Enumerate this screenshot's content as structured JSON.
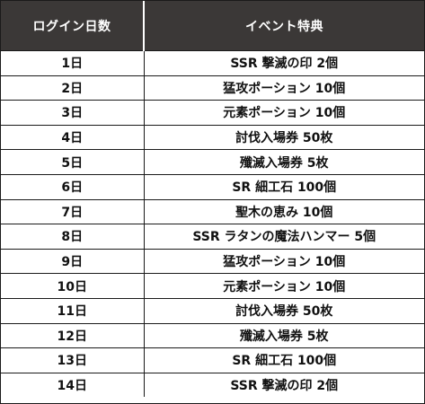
{
  "table": {
    "headers": {
      "day": "ログイン日数",
      "event": "イベント特典"
    },
    "rows": [
      {
        "day": "1日",
        "reward": "SSR 撃滅の印 2個"
      },
      {
        "day": "2日",
        "reward": "猛攻ポーション 10個"
      },
      {
        "day": "3日",
        "reward": "元素ポーション 10個"
      },
      {
        "day": "4日",
        "reward": "討伐入場券 50枚"
      },
      {
        "day": "5日",
        "reward": "殲滅入場券 5枚"
      },
      {
        "day": "6日",
        "reward": "SR 細工石 100個"
      },
      {
        "day": "7日",
        "reward": "聖木の恵み 10個"
      },
      {
        "day": "8日",
        "reward": "SSR ラタンの魔法ハンマー 5個"
      },
      {
        "day": "9日",
        "reward": "猛攻ポーション 10個"
      },
      {
        "day": "10日",
        "reward": "元素ポーション 10個"
      },
      {
        "day": "11日",
        "reward": "討伐入場券 50枚"
      },
      {
        "day": "12日",
        "reward": "殲滅入場券 5枚"
      },
      {
        "day": "13日",
        "reward": "SR 細工石 100個"
      },
      {
        "day": "14日",
        "reward": "SSR 撃滅の印 2個"
      }
    ]
  },
  "colors": {
    "header_bg": "#3b3837",
    "header_text": "#ffffff",
    "border": "#1a1a1a"
  }
}
